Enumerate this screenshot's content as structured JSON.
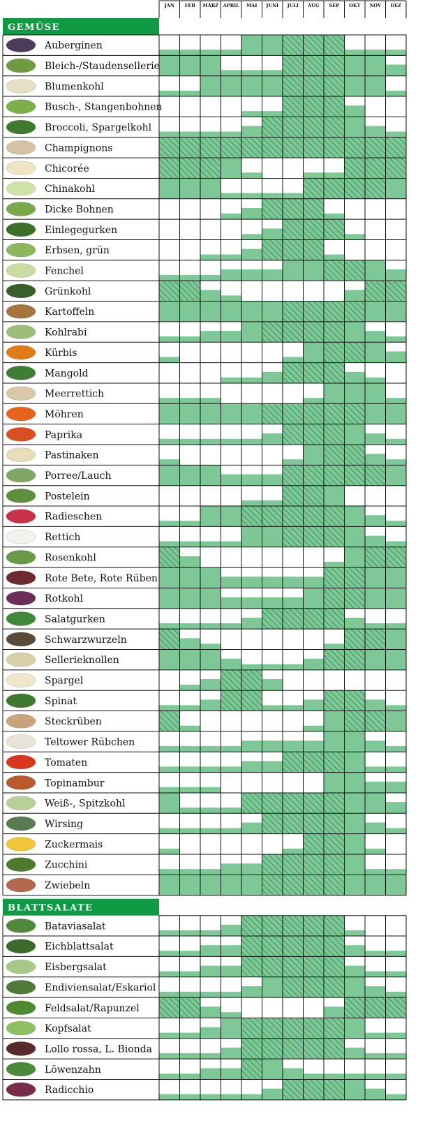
{
  "months": [
    "JAN",
    "FEB",
    "MÄRZ",
    "APRIL",
    "MAI",
    "JUNI",
    "JULI",
    "AUG",
    "SEP",
    "OKT",
    "NOV",
    "DEZ"
  ],
  "legend": {
    "levels": {
      "0": "none",
      "1": "low",
      "2": "medium",
      "3": "full",
      "4": "full-hatched"
    }
  },
  "colors": {
    "header_green": "#0f9a43",
    "fill_green": "#7dc896",
    "hatch": "#1d7a43",
    "grid": "#111111"
  },
  "chart_data": {
    "type": "heatmap",
    "x": [
      "JAN",
      "FEB",
      "MÄRZ",
      "APRIL",
      "MAI",
      "JUNI",
      "JULI",
      "AUG",
      "SEP",
      "OKT",
      "NOV",
      "DEZ"
    ],
    "sections": [
      {
        "title": "GEMÜSE",
        "rows": [
          {
            "name": "Auberginen",
            "values": [
              1,
              1,
              1,
              1,
              3,
              3,
              4,
              4,
              4,
              1,
              1,
              1
            ]
          },
          {
            "name": "Bleich-/Staudensellerie",
            "values": [
              3,
              3,
              3,
              1,
              1,
              1,
              4,
              4,
              4,
              3,
              3,
              2
            ]
          },
          {
            "name": "Blumenkohl",
            "values": [
              1,
              1,
              3,
              3,
              3,
              3,
              4,
              4,
              4,
              3,
              3,
              1
            ]
          },
          {
            "name": "Busch-, Stangenbohnen",
            "values": [
              0,
              0,
              0,
              0,
              1,
              1,
              4,
              4,
              4,
              2,
              0,
              0
            ]
          },
          {
            "name": "Broccoli, Spargelkohl",
            "values": [
              1,
              1,
              1,
              1,
              2,
              4,
              4,
              4,
              4,
              3,
              2,
              1
            ]
          },
          {
            "name": "Champignons",
            "values": [
              4,
              4,
              4,
              4,
              4,
              4,
              4,
              4,
              4,
              4,
              4,
              4
            ]
          },
          {
            "name": "Chicorée",
            "values": [
              4,
              4,
              4,
              3,
              1,
              0,
              0,
              1,
              1,
              4,
              4,
              4
            ]
          },
          {
            "name": "Chinakohl",
            "values": [
              3,
              3,
              3,
              1,
              1,
              1,
              1,
              4,
              4,
              4,
              4,
              3
            ]
          },
          {
            "name": "Dicke Bohnen",
            "values": [
              0,
              0,
              0,
              1,
              2,
              4,
              4,
              4,
              1,
              0,
              0,
              0
            ]
          },
          {
            "name": "Einlegegurken",
            "values": [
              0,
              0,
              0,
              0,
              1,
              2,
              4,
              4,
              4,
              1,
              0,
              0
            ]
          },
          {
            "name": "Erbsen, grün",
            "values": [
              0,
              0,
              1,
              1,
              2,
              4,
              4,
              4,
              1,
              0,
              0,
              0
            ]
          },
          {
            "name": "Fenchel",
            "values": [
              1,
              1,
              1,
              2,
              2,
              2,
              3,
              3,
              4,
              4,
              3,
              2
            ]
          },
          {
            "name": "Grünkohl",
            "values": [
              4,
              4,
              2,
              1,
              0,
              0,
              0,
              0,
              0,
              2,
              4,
              4
            ]
          },
          {
            "name": "Kartoffeln",
            "values": [
              3,
              3,
              3,
              3,
              3,
              3,
              4,
              4,
              4,
              4,
              3,
              3
            ]
          },
          {
            "name": "Kohlrabi",
            "values": [
              1,
              1,
              2,
              2,
              3,
              4,
              4,
              4,
              4,
              3,
              2,
              1
            ]
          },
          {
            "name": "Kürbis",
            "values": [
              1,
              0,
              0,
              0,
              0,
              0,
              1,
              3,
              4,
              4,
              3,
              2
            ]
          },
          {
            "name": "Mangold",
            "values": [
              0,
              0,
              0,
              1,
              1,
              2,
              4,
              4,
              4,
              2,
              1,
              0
            ]
          },
          {
            "name": "Meerrettich",
            "values": [
              1,
              1,
              1,
              0,
              0,
              0,
              0,
              1,
              3,
              3,
              3,
              1
            ]
          },
          {
            "name": "Möhren",
            "values": [
              3,
              3,
              3,
              3,
              3,
              4,
              4,
              4,
              4,
              4,
              3,
              3
            ]
          },
          {
            "name": "Paprika",
            "values": [
              1,
              1,
              1,
              1,
              1,
              2,
              4,
              4,
              4,
              3,
              2,
              1
            ]
          },
          {
            "name": "Pastinaken",
            "values": [
              1,
              0,
              0,
              0,
              0,
              0,
              1,
              3,
              4,
              4,
              2,
              1
            ]
          },
          {
            "name": "Porree/Lauch",
            "values": [
              3,
              3,
              3,
              2,
              2,
              2,
              4,
              4,
              4,
              4,
              4,
              3
            ]
          },
          {
            "name": "Postelein",
            "values": [
              0,
              0,
              0,
              0,
              1,
              1,
              4,
              4,
              3,
              0,
              0,
              0
            ]
          },
          {
            "name": "Radieschen",
            "values": [
              1,
              1,
              3,
              3,
              4,
              4,
              4,
              4,
              4,
              3,
              2,
              1
            ]
          },
          {
            "name": "Rettich",
            "values": [
              1,
              1,
              1,
              1,
              3,
              3,
              4,
              4,
              4,
              3,
              2,
              1
            ]
          },
          {
            "name": "Rosenkohl",
            "values": [
              4,
              2,
              0,
              0,
              0,
              0,
              0,
              0,
              1,
              3,
              4,
              4
            ]
          },
          {
            "name": "Rote Bete, Rote Rüben",
            "values": [
              3,
              3,
              3,
              2,
              2,
              2,
              2,
              2,
              4,
              4,
              3,
              3
            ]
          },
          {
            "name": "Rotkohl",
            "values": [
              3,
              3,
              3,
              2,
              2,
              2,
              2,
              3,
              4,
              4,
              3,
              3
            ]
          },
          {
            "name": "Salatgurken",
            "values": [
              1,
              1,
              1,
              1,
              2,
              4,
              4,
              4,
              4,
              2,
              1,
              1
            ]
          },
          {
            "name": "Schwarzwurzeln",
            "values": [
              4,
              2,
              1,
              0,
              0,
              0,
              0,
              0,
              1,
              4,
              4,
              3
            ]
          },
          {
            "name": "Sellerieknollen",
            "values": [
              3,
              3,
              3,
              2,
              1,
              1,
              1,
              2,
              4,
              4,
              3,
              3
            ]
          },
          {
            "name": "Spargel",
            "values": [
              0,
              1,
              2,
              4,
              4,
              2,
              0,
              0,
              0,
              0,
              0,
              0
            ]
          },
          {
            "name": "Spinat",
            "values": [
              1,
              1,
              2,
              4,
              4,
              1,
              1,
              2,
              4,
              4,
              2,
              1
            ]
          },
          {
            "name": "Steckrüben",
            "values": [
              4,
              1,
              0,
              0,
              0,
              0,
              0,
              1,
              3,
              4,
              4,
              3
            ]
          },
          {
            "name": "Teltower Rübchen",
            "values": [
              1,
              1,
              1,
              1,
              2,
              2,
              2,
              2,
              3,
              3,
              2,
              1
            ]
          },
          {
            "name": "Tomaten",
            "values": [
              1,
              1,
              1,
              1,
              2,
              2,
              4,
              4,
              4,
              3,
              1,
              1
            ]
          },
          {
            "name": "Topinambur",
            "values": [
              1,
              1,
              1,
              0,
              0,
              0,
              0,
              0,
              3,
              3,
              2,
              2
            ]
          },
          {
            "name": "Weiß-, Spitzkohl",
            "values": [
              3,
              1,
              1,
              1,
              4,
              4,
              4,
              4,
              4,
              3,
              3,
              2
            ]
          },
          {
            "name": "Wirsing",
            "values": [
              1,
              1,
              1,
              1,
              2,
              4,
              4,
              4,
              4,
              3,
              2,
              1
            ]
          },
          {
            "name": "Zuckermais",
            "values": [
              1,
              0,
              0,
              0,
              0,
              0,
              1,
              4,
              4,
              3,
              1,
              0
            ]
          },
          {
            "name": "Zucchini",
            "values": [
              1,
              1,
              1,
              2,
              2,
              4,
              4,
              4,
              4,
              3,
              1,
              1
            ]
          },
          {
            "name": "Zwiebeln",
            "values": [
              3,
              3,
              3,
              3,
              3,
              4,
              4,
              4,
              4,
              3,
              3,
              3
            ]
          }
        ]
      },
      {
        "title": "BLATTSALATE",
        "rows": [
          {
            "name": "Bataviasalat",
            "values": [
              1,
              1,
              1,
              2,
              4,
              4,
              4,
              4,
              4,
              1,
              0,
              0
            ]
          },
          {
            "name": "Eichblattsalat",
            "values": [
              1,
              1,
              2,
              2,
              4,
              4,
              4,
              4,
              4,
              2,
              1,
              1
            ]
          },
          {
            "name": "Eisbergsalat",
            "values": [
              1,
              1,
              2,
              2,
              4,
              4,
              4,
              4,
              4,
              2,
              1,
              1
            ]
          },
          {
            "name": "Endiviensalat/Eskariol",
            "values": [
              1,
              1,
              1,
              1,
              2,
              3,
              4,
              4,
              4,
              3,
              2,
              1
            ]
          },
          {
            "name": "Feldsalat/Rapunzel",
            "values": [
              4,
              4,
              2,
              1,
              0,
              0,
              0,
              0,
              2,
              4,
              4,
              4
            ]
          },
          {
            "name": "Kopfsalat",
            "values": [
              1,
              1,
              2,
              3,
              4,
              4,
              4,
              4,
              4,
              3,
              1,
              1
            ]
          },
          {
            "name": "Lollo rossa, L. Bionda",
            "values": [
              1,
              1,
              1,
              2,
              4,
              4,
              4,
              4,
              4,
              2,
              1,
              1
            ]
          },
          {
            "name": "Löwenzahn",
            "values": [
              1,
              1,
              2,
              2,
              4,
              3,
              2,
              1,
              1,
              1,
              1,
              1
            ]
          },
          {
            "name": "Radicchio",
            "values": [
              1,
              1,
              1,
              1,
              1,
              2,
              4,
              4,
              4,
              3,
              2,
              1
            ]
          }
        ]
      }
    ]
  }
}
